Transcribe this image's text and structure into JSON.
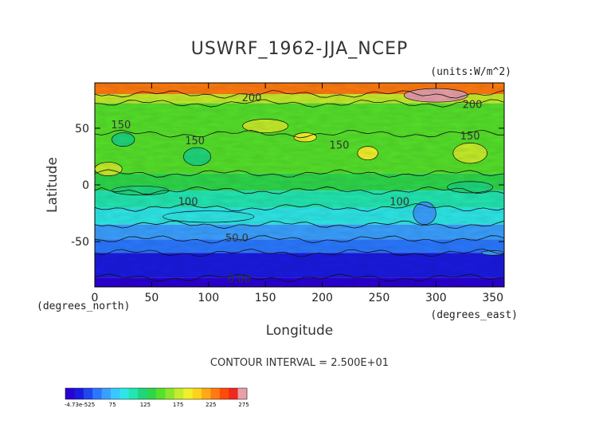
{
  "chart_data": {
    "type": "heatmap",
    "title": "USWRF_1962-JJA_NCEP",
    "units": "(units:W/m^2)",
    "xlabel": "Longitude",
    "ylabel": "Latitude",
    "x_unit_label": "(degrees_east)",
    "y_unit_label": "(degrees_north)",
    "xlim": [
      0,
      360
    ],
    "ylim": [
      -90,
      90
    ],
    "x_ticks": [
      0,
      50,
      100,
      150,
      200,
      250,
      300,
      350
    ],
    "y_ticks": [
      -50,
      0,
      50
    ],
    "contour_interval": "CONTOUR INTERVAL = 2.500E+01",
    "contour_labels": [
      {
        "text": "200",
        "lon": 138,
        "lat": 74
      },
      {
        "text": "200",
        "lon": 332,
        "lat": 68
      },
      {
        "text": "150",
        "lon": 23,
        "lat": 50
      },
      {
        "text": "150",
        "lon": 88,
        "lat": 36
      },
      {
        "text": "150",
        "lon": 215,
        "lat": 32
      },
      {
        "text": "150",
        "lon": 330,
        "lat": 40
      },
      {
        "text": "100",
        "lon": 82,
        "lat": -18
      },
      {
        "text": "100",
        "lon": 268,
        "lat": -18
      },
      {
        "text": "50.0",
        "lon": 125,
        "lat": -50
      },
      {
        "text": "0.00",
        "lon": 127,
        "lat": -86
      }
    ],
    "lat_bands": [
      {
        "lat_from": 90,
        "lat_to": 80,
        "value": 240
      },
      {
        "lat_from": 80,
        "lat_to": 72,
        "value": 190
      },
      {
        "lat_from": 72,
        "lat_to": 45,
        "value": 160
      },
      {
        "lat_from": 45,
        "lat_to": 10,
        "value": 150
      },
      {
        "lat_from": 10,
        "lat_to": -5,
        "value": 140
      },
      {
        "lat_from": -5,
        "lat_to": -20,
        "value": 110
      },
      {
        "lat_from": -20,
        "lat_to": -35,
        "value": 90
      },
      {
        "lat_from": -35,
        "lat_to": -48,
        "value": 70
      },
      {
        "lat_from": -48,
        "lat_to": -60,
        "value": 45
      },
      {
        "lat_from": -60,
        "lat_to": -82,
        "value": 20
      },
      {
        "lat_from": -82,
        "lat_to": -90,
        "value": 0
      }
    ],
    "colorbar": {
      "tick_labels": [
        "-4.73e-525",
        "75",
        "125",
        "175",
        "225",
        "275"
      ],
      "min": 0,
      "max": 300,
      "colors": [
        "#2a00d4",
        "#1a1ae0",
        "#1f46f0",
        "#2a78ff",
        "#3aa0ff",
        "#39c8ff",
        "#2ee6e6",
        "#22e6b0",
        "#1fd67a",
        "#2ed64a",
        "#55e02a",
        "#8ae62a",
        "#c4ec2a",
        "#f0f02a",
        "#ffd21e",
        "#ffaa14",
        "#ff7a0f",
        "#ff4a0a",
        "#f0281e",
        "#e8a0a8"
      ]
    }
  }
}
